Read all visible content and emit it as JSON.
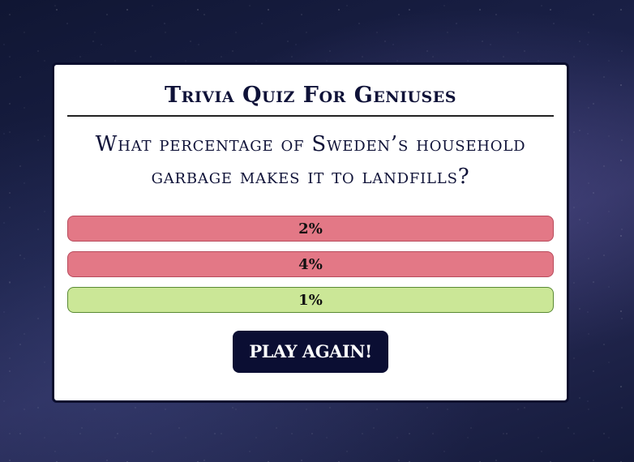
{
  "quiz": {
    "title": "Trivia Quiz For Geniuses",
    "question": "What percentage of Sweden’s household garbage makes it to landfills?",
    "answers": [
      {
        "label": "2%",
        "status": "wrong"
      },
      {
        "label": "4%",
        "status": "wrong"
      },
      {
        "label": "1%",
        "status": "correct"
      }
    ],
    "play_again_label": "PLAY AGAIN!"
  },
  "colors": {
    "wrong": "#e37886",
    "correct": "#cbe797",
    "card_border": "#0b0e2e",
    "button_bg": "#0b0e33"
  }
}
